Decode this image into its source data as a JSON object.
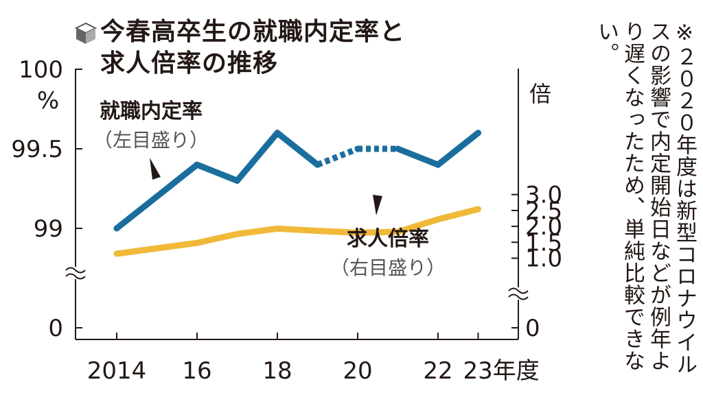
{
  "title": {
    "line1": "今春高卒生の就職内定率と",
    "line2": "求人倍率の推移"
  },
  "note": {
    "mark": "※",
    "text": "２０２０年度は新型コロナウイルスの影響で内定開始日などが例年より遅くなったため、単純比較できない。"
  },
  "colors": {
    "employment": "#1a6e9e",
    "job_ratio": "#f0b93a",
    "text": "#231815",
    "axis": "#231815"
  },
  "chart_data": {
    "type": "line",
    "x": [
      2014,
      2015,
      2016,
      2017,
      2018,
      2019,
      2020,
      2021,
      2022,
      2023
    ],
    "xticks": [
      "2014",
      "16",
      "18",
      "20",
      "22",
      "23年度"
    ],
    "xtick_years": [
      2014,
      2016,
      2018,
      2020,
      2022,
      2023
    ],
    "left_axis": {
      "ticks": [
        "100",
        "99.5",
        "99",
        "0"
      ],
      "tick_values": [
        100,
        99.5,
        99,
        0
      ],
      "unit": "%",
      "range": [
        98.5,
        100
      ],
      "broken": true
    },
    "right_axis": {
      "ticks": [
        "3.0",
        "2.5",
        "2.0",
        "1.5",
        "1.0",
        "0"
      ],
      "tick_values": [
        3.0,
        2.5,
        2.0,
        1.5,
        1.0,
        0
      ],
      "unit": "倍",
      "range": [
        0.5,
        3.0
      ],
      "broken": true
    },
    "series": [
      {
        "name": "就職内定率",
        "axis_note": "（左目盛り）",
        "axis": "left",
        "values": [
          99.0,
          99.2,
          99.4,
          99.3,
          99.6,
          99.4,
          99.5,
          99.5,
          99.4,
          99.6
        ],
        "dotted_segments": [
          [
            2019,
            2020
          ],
          [
            2020,
            2021
          ]
        ]
      },
      {
        "name": "求人倍率",
        "axis_note": "（右目盛り）",
        "axis": "right",
        "values": [
          1.14,
          1.31,
          1.48,
          1.76,
          1.93,
          1.86,
          1.8,
          1.83,
          2.22,
          2.54
        ]
      }
    ]
  }
}
